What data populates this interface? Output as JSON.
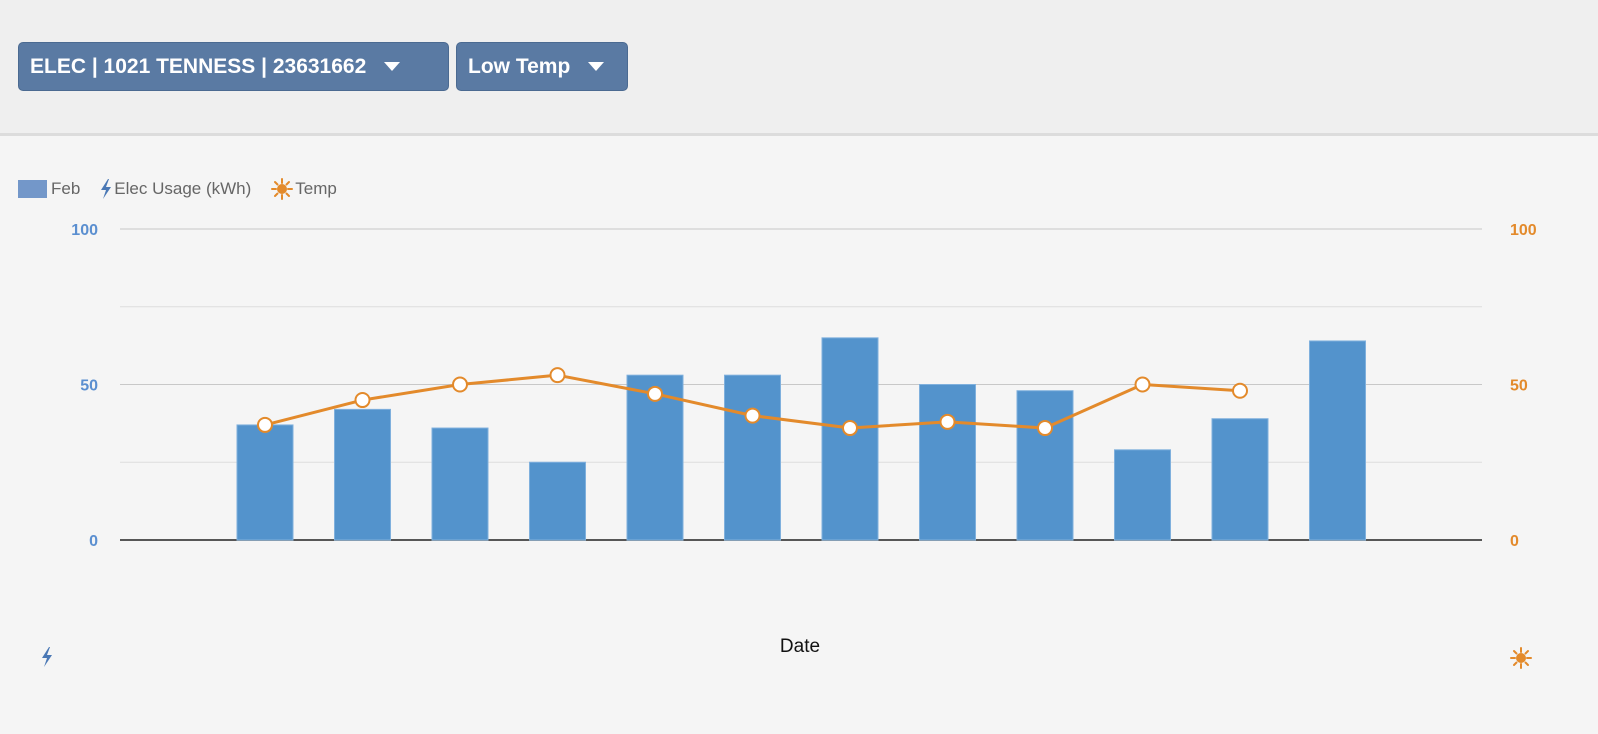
{
  "toolbar": {
    "meter_dropdown": "ELEC | 1021 TENNESS | 23631662",
    "temp_dropdown": "Low Temp"
  },
  "legend": {
    "bars_label": "Feb",
    "usage_label": "Elec Usage (kWh)",
    "temp_label": "Temp"
  },
  "colors": {
    "bar": "#5393cc",
    "line": "#e38a2b",
    "left_axis": "#5b8fd0",
    "right_axis": "#e38a2b",
    "dropdown": "#5a7aa3"
  },
  "icons": {
    "usage": "lightning-bolt-icon",
    "temp": "sun-icon"
  },
  "chart_data": {
    "type": "bar",
    "title": "",
    "xlabel": "Date",
    "ylabel": "",
    "ylim": [
      0,
      100
    ],
    "y_ticks": [
      0,
      50,
      100
    ],
    "y2lim": [
      0,
      100
    ],
    "y2_ticks": [
      0,
      50,
      100
    ],
    "grid": true,
    "legend_position": "top-left",
    "categories": [
      "",
      "",
      "",
      "",
      "",
      "",
      "",
      "",
      "",
      "",
      "",
      ""
    ],
    "series": [
      {
        "name": "Feb",
        "type": "bar",
        "axis": "left",
        "values": [
          37,
          42,
          36,
          25,
          53,
          53,
          65,
          50,
          48,
          29,
          39,
          64
        ]
      },
      {
        "name": "Temp",
        "type": "line",
        "axis": "right",
        "values": [
          37,
          45,
          50,
          53,
          47,
          40,
          36,
          38,
          36,
          50,
          48,
          null
        ]
      }
    ]
  }
}
